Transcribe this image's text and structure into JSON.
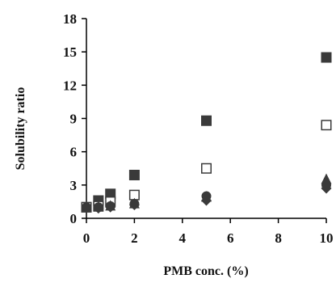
{
  "chart_data": {
    "type": "scatter",
    "title": "",
    "xlabel": "PMB conc. (%)",
    "ylabel": "Solubility ratio",
    "xlim": [
      0,
      10
    ],
    "ylim": [
      0,
      18
    ],
    "xticks": [
      0,
      2,
      4,
      6,
      8,
      10
    ],
    "yticks": [
      0,
      3,
      6,
      9,
      12,
      15,
      18
    ],
    "grid": false,
    "legend": "none",
    "colors": {
      "filled": "#3a3a3a",
      "hollow_stroke": "#3a3a3a",
      "hollow_fill": "#ffffff"
    },
    "series": [
      {
        "marker": "square-filled",
        "points": [
          [
            0,
            1.0
          ],
          [
            0.5,
            1.6
          ],
          [
            1,
            2.2
          ],
          [
            2,
            3.9
          ],
          [
            5,
            8.8
          ],
          [
            10,
            14.5
          ]
        ]
      },
      {
        "marker": "square-open",
        "points": [
          [
            0,
            1.0
          ],
          [
            0.5,
            1.1
          ],
          [
            1,
            1.5
          ],
          [
            2,
            2.1
          ],
          [
            5,
            4.5
          ],
          [
            10,
            8.4
          ]
        ]
      },
      {
        "marker": "triangle-filled",
        "points": [
          [
            0,
            1.0
          ],
          [
            0.5,
            1.0
          ],
          [
            1,
            1.1
          ],
          [
            2,
            1.3
          ],
          [
            5,
            1.9
          ],
          [
            10,
            3.5
          ]
        ]
      },
      {
        "marker": "circle-filled",
        "points": [
          [
            0,
            1.0
          ],
          [
            0.5,
            1.0
          ],
          [
            1,
            1.1
          ],
          [
            2,
            1.3
          ],
          [
            5,
            2.0
          ],
          [
            10,
            3.0
          ]
        ]
      },
      {
        "marker": "diamond-filled",
        "points": [
          [
            0,
            1.0
          ],
          [
            0.5,
            0.9
          ],
          [
            1,
            1.0
          ],
          [
            2,
            1.2
          ],
          [
            5,
            1.6
          ],
          [
            10,
            2.7
          ]
        ]
      }
    ]
  }
}
